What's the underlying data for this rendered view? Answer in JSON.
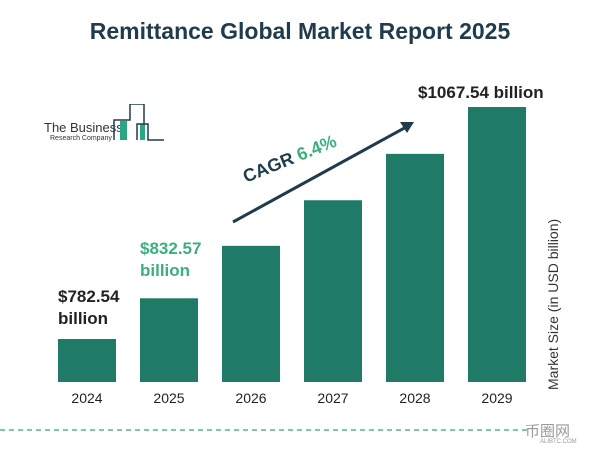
{
  "chart_data": {
    "type": "bar",
    "title": "Remittance Global Market Report 2025",
    "categories": [
      "2024",
      "2025",
      "2026",
      "2027",
      "2028",
      "2029"
    ],
    "values": [
      782.54,
      832.57,
      897,
      953,
      1010,
      1067.54
    ],
    "data_labels": {
      "2024": "$782.54 billion",
      "2025": "$832.57 billion",
      "2029": "$1067.54 billion"
    },
    "ylabel": "Market Size (in USD billion)",
    "xlabel": "",
    "grid": false,
    "annotation": {
      "prefix": "CAGR",
      "value": "6.4%"
    },
    "bar_color": "#1f7a68",
    "highlight_color": "#3bb07e"
  },
  "logo": {
    "line1": "The Business",
    "line2": "Research Company"
  },
  "watermark": {
    "main": "币圈网",
    "sub": "ALIBTC.COM"
  }
}
